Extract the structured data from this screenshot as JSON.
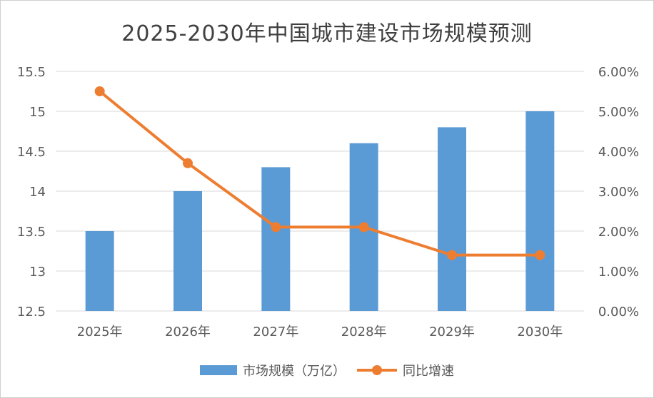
{
  "chart_data": {
    "type": "bar",
    "title": "2025-2030年中国城市建设市场规模预测",
    "categories": [
      "2025年",
      "2026年",
      "2027年",
      "2028年",
      "2029年",
      "2030年"
    ],
    "series": [
      {
        "name": "市场规模（万亿）",
        "type": "bar",
        "axis": "left",
        "values": [
          13.5,
          14.0,
          14.3,
          14.6,
          14.8,
          15.0
        ],
        "color": "#5b9bd5"
      },
      {
        "name": "同比增速",
        "type": "line",
        "axis": "right",
        "values": [
          0.055,
          0.037,
          0.021,
          0.021,
          0.014,
          0.014
        ],
        "color": "#ed7d31"
      }
    ],
    "y_left": {
      "ylim": [
        12.5,
        15.5
      ],
      "ticks": [
        "15.5",
        "15",
        "14.5",
        "14",
        "13.5",
        "13",
        "12.5"
      ]
    },
    "y_right": {
      "ylim": [
        0.0,
        0.06
      ],
      "ticks": [
        "6.00%",
        "5.00%",
        "4.00%",
        "3.00%",
        "2.00%",
        "1.00%",
        "0.00%"
      ]
    },
    "grid": true,
    "legend": "bottom"
  }
}
